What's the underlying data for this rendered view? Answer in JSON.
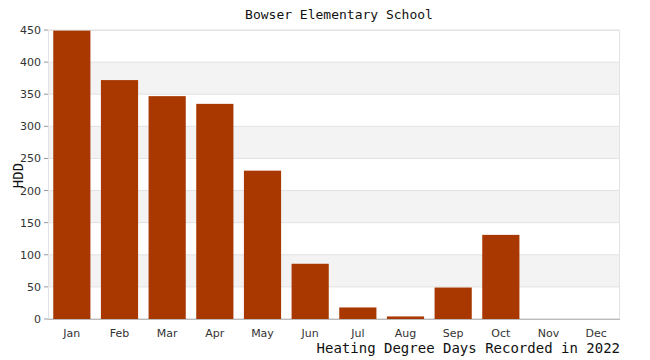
{
  "chart_data": {
    "type": "bar",
    "title": "Bowser Elementary School",
    "y_label": "HDD",
    "x_label": "Heating Degree Days Recorded in 2022",
    "categories": [
      "Jan",
      "Feb",
      "Mar",
      "Apr",
      "May",
      "Jun",
      "Jul",
      "Aug",
      "Sep",
      "Oct",
      "Nov",
      "Dec"
    ],
    "values": [
      449,
      372,
      347,
      335,
      231,
      86,
      18,
      4,
      49,
      131,
      0,
      0
    ],
    "color": "#a93800",
    "ylim": [
      0,
      450
    ],
    "yticks": [
      0,
      50,
      100,
      150,
      200,
      250,
      300,
      350,
      400,
      450
    ],
    "grid": true
  }
}
